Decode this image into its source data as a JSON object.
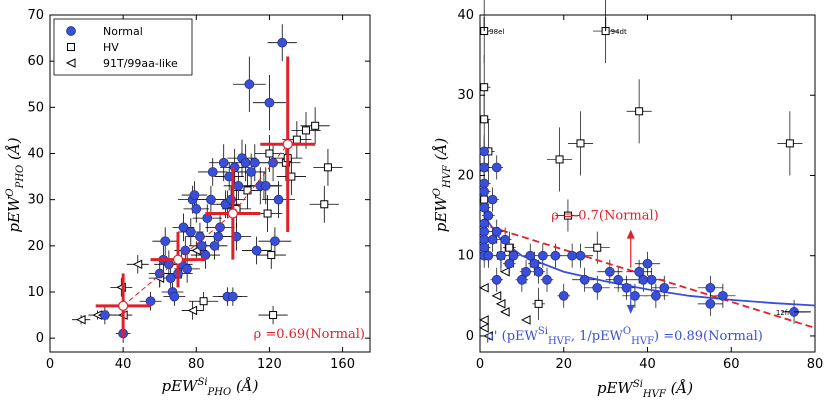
{
  "chart_data": [
    {
      "type": "scatter",
      "panel": "left",
      "xlabel": "pEW_PHO^Si (Å)",
      "ylabel": "pEW_PHO^O (Å)",
      "xlim": [
        0,
        175
      ],
      "ylim": [
        -3,
        70
      ],
      "xticks": [
        0,
        40,
        80,
        120,
        160
      ],
      "yticks": [
        0,
        10,
        20,
        30,
        40,
        50,
        60,
        70
      ],
      "legend": {
        "placement": "top-left",
        "entries": [
          {
            "label": "Normal",
            "marker": "filled-circle"
          },
          {
            "label": "HV",
            "marker": "open-square"
          },
          {
            "label": "91T/99aa-like",
            "marker": "open-triangle-left"
          }
        ]
      },
      "annotation": {
        "text": "ρ =0.69(Normal)",
        "color": "#e0202a"
      },
      "series": [
        {
          "name": "Normal",
          "points": [
            [
              40,
              1
            ],
            [
              30,
              5
            ],
            [
              55,
              8
            ],
            [
              60,
              14
            ],
            [
              62,
              17
            ],
            [
              63,
              21
            ],
            [
              65,
              16
            ],
            [
              66,
              13
            ],
            [
              67,
              10
            ],
            [
              68,
              9
            ],
            [
              70,
              14
            ],
            [
              72,
              16
            ],
            [
              73,
              24
            ],
            [
              74,
              19
            ],
            [
              75,
              15
            ],
            [
              77,
              23
            ],
            [
              78,
              30
            ],
            [
              79,
              31
            ],
            [
              80,
              28
            ],
            [
              82,
              22
            ],
            [
              83,
              20
            ],
            [
              85,
              18
            ],
            [
              86,
              26
            ],
            [
              88,
              30
            ],
            [
              89,
              36
            ],
            [
              90,
              20
            ],
            [
              92,
              22
            ],
            [
              93,
              24
            ],
            [
              95,
              38
            ],
            [
              96,
              29
            ],
            [
              97,
              9
            ],
            [
              98,
              35
            ],
            [
              99,
              30
            ],
            [
              100,
              9
            ],
            [
              101,
              37
            ],
            [
              102,
              22
            ],
            [
              103,
              33
            ],
            [
              105,
              39
            ],
            [
              107,
              38
            ],
            [
              109,
              55
            ],
            [
              110,
              36
            ],
            [
              112,
              38
            ],
            [
              113,
              19
            ],
            [
              115,
              33
            ],
            [
              118,
              33
            ],
            [
              120,
              51
            ],
            [
              122,
              38
            ],
            [
              123,
              21
            ],
            [
              125,
              30
            ],
            [
              127,
              64
            ]
          ],
          "xerr": [
            4,
            6,
            6,
            6,
            7,
            7,
            8,
            6,
            6,
            6,
            8,
            6,
            6,
            6,
            7,
            7,
            8,
            7,
            7,
            8,
            7,
            8,
            8,
            8,
            8,
            7,
            8,
            8,
            8,
            8,
            8,
            8,
            8,
            8,
            8,
            8,
            8,
            8,
            8,
            9,
            8,
            8,
            8,
            9,
            9,
            9,
            9,
            9,
            9,
            8
          ],
          "yerr": [
            2,
            2,
            2,
            3,
            3,
            3,
            3,
            2,
            2,
            2,
            3,
            3,
            3,
            3,
            3,
            3,
            3,
            3,
            3,
            3,
            3,
            3,
            3,
            3,
            3,
            3,
            3,
            3,
            4,
            3,
            2,
            3,
            3,
            2,
            4,
            3,
            3,
            4,
            4,
            6,
            4,
            4,
            3,
            4,
            4,
            6,
            4,
            3,
            4,
            4
          ]
        },
        {
          "name": "HV",
          "points": [
            [
              84,
              8
            ],
            [
              97,
              29
            ],
            [
              102,
              28
            ],
            [
              108,
              32
            ],
            [
              117,
              33
            ],
            [
              119,
              27
            ],
            [
              120,
              40
            ],
            [
              121,
              18
            ],
            [
              122,
              5
            ],
            [
              129,
              38
            ],
            [
              130,
              39
            ],
            [
              132,
              35
            ],
            [
              135,
              43
            ],
            [
              140,
              45
            ],
            [
              145,
              46
            ],
            [
              150,
              29
            ],
            [
              152,
              37
            ]
          ],
          "xerr": [
            8,
            6,
            8,
            8,
            8,
            8,
            8,
            8,
            8,
            8,
            8,
            8,
            8,
            8,
            8,
            8,
            8
          ],
          "yerr": [
            2,
            3,
            4,
            4,
            3,
            4,
            4,
            3,
            2,
            4,
            4,
            4,
            4,
            4,
            4,
            4,
            4
          ]
        },
        {
          "name": "91T/99aa-like",
          "points": [
            [
              17,
              4
            ],
            [
              26,
              5
            ],
            [
              29,
              5
            ],
            [
              39,
              11
            ],
            [
              40,
              5
            ],
            [
              48,
              16
            ],
            [
              60,
              13
            ],
            [
              78,
              6
            ],
            [
              80,
              19
            ]
          ],
          "xerr": [
            5,
            5,
            5,
            6,
            5,
            6,
            6,
            6,
            6
          ],
          "yerr": [
            1,
            1,
            1,
            2,
            1,
            2,
            2,
            2,
            2
          ]
        },
        {
          "name": "Binned mean",
          "color": "#e0202a",
          "points": [
            [
              40,
              7
            ],
            [
              70,
              17
            ],
            [
              100,
              27
            ],
            [
              130,
              42
            ]
          ],
          "xerr": [
            15,
            15,
            15,
            15
          ],
          "yerr": [
            7,
            6,
            10,
            19
          ]
        }
      ]
    },
    {
      "type": "scatter",
      "panel": "right",
      "xlabel": "pEW_HVF^Si (Å)",
      "ylabel": "pEW_HVF^O (Å)",
      "xlim": [
        0,
        80
      ],
      "ylim": [
        -2,
        40
      ],
      "xticks": [
        0,
        20,
        40,
        60,
        80
      ],
      "yticks": [
        0,
        10,
        20,
        30,
        40
      ],
      "annotations": [
        {
          "text": "ρ =-0.7(Normal)",
          "color": "#e0202a"
        },
        {
          "text": "ρ' (pEW_HVF^Si, 1/pEW_HVF^O) =0.89(Normal)",
          "color": "#3a4fd8"
        }
      ],
      "point_labels": [
        "98el",
        "94dt",
        "12fr"
      ],
      "fit_lines": [
        {
          "name": "fit-power",
          "color": "#3a4fd8",
          "style": "solid",
          "x": [
            0,
            2,
            5,
            10,
            20,
            30,
            40,
            50,
            60,
            70,
            80
          ],
          "y": [
            17.5,
            14.2,
            12,
            10,
            8,
            6.8,
            5.8,
            5,
            4.5,
            4.1,
            3.8
          ]
        },
        {
          "name": "fit-linear",
          "color": "#e0202a",
          "style": "dashed",
          "x": [
            0,
            80
          ],
          "y": [
            14,
            1
          ]
        }
      ],
      "series": [
        {
          "name": "Normal",
          "points": [
            [
              1,
              23
            ],
            [
              1,
              21
            ],
            [
              1,
              19
            ],
            [
              1,
              18
            ],
            [
              1,
              16
            ],
            [
              1,
              14
            ],
            [
              1,
              13
            ],
            [
              1,
              12
            ],
            [
              1,
              11
            ],
            [
              1,
              10
            ],
            [
              2,
              15
            ],
            [
              2,
              10
            ],
            [
              3,
              17
            ],
            [
              3,
              12
            ],
            [
              4,
              21
            ],
            [
              4,
              13
            ],
            [
              4,
              7
            ],
            [
              5,
              10
            ],
            [
              6,
              12
            ],
            [
              7,
              9
            ],
            [
              8,
              10
            ],
            [
              10,
              7
            ],
            [
              11,
              8
            ],
            [
              12,
              10
            ],
            [
              13,
              9
            ],
            [
              14,
              8
            ],
            [
              15,
              10
            ],
            [
              16,
              7
            ],
            [
              18,
              10
            ],
            [
              20,
              5
            ],
            [
              22,
              10
            ],
            [
              24,
              10
            ],
            [
              25,
              7
            ],
            [
              28,
              6
            ],
            [
              31,
              8
            ],
            [
              33,
              7
            ],
            [
              35,
              6
            ],
            [
              37,
              5
            ],
            [
              38,
              8
            ],
            [
              39,
              7
            ],
            [
              40,
              9
            ],
            [
              41,
              7
            ],
            [
              42,
              5
            ],
            [
              44,
              6
            ],
            [
              55,
              4
            ],
            [
              55,
              6
            ],
            [
              58,
              5
            ],
            [
              75,
              3
            ]
          ]
        },
        {
          "name": "HV",
          "points": [
            [
              1,
              38
            ],
            [
              1,
              31
            ],
            [
              1,
              27
            ],
            [
              1,
              21
            ],
            [
              1,
              17
            ],
            [
              2,
              23
            ],
            [
              5,
              10
            ],
            [
              7,
              11
            ],
            [
              14,
              4
            ],
            [
              19,
              22
            ],
            [
              21,
              15
            ],
            [
              24,
              24
            ],
            [
              28,
              11
            ],
            [
              30,
              38
            ],
            [
              38,
              28
            ],
            [
              74,
              24
            ]
          ]
        },
        {
          "name": "91T/99aa-like",
          "points": [
            [
              1,
              6
            ],
            [
              1,
              2
            ],
            [
              1,
              1
            ],
            [
              2,
              0
            ],
            [
              4,
              5
            ],
            [
              5,
              4
            ],
            [
              6,
              8
            ],
            [
              6,
              3
            ],
            [
              11,
              2
            ]
          ]
        }
      ]
    }
  ]
}
